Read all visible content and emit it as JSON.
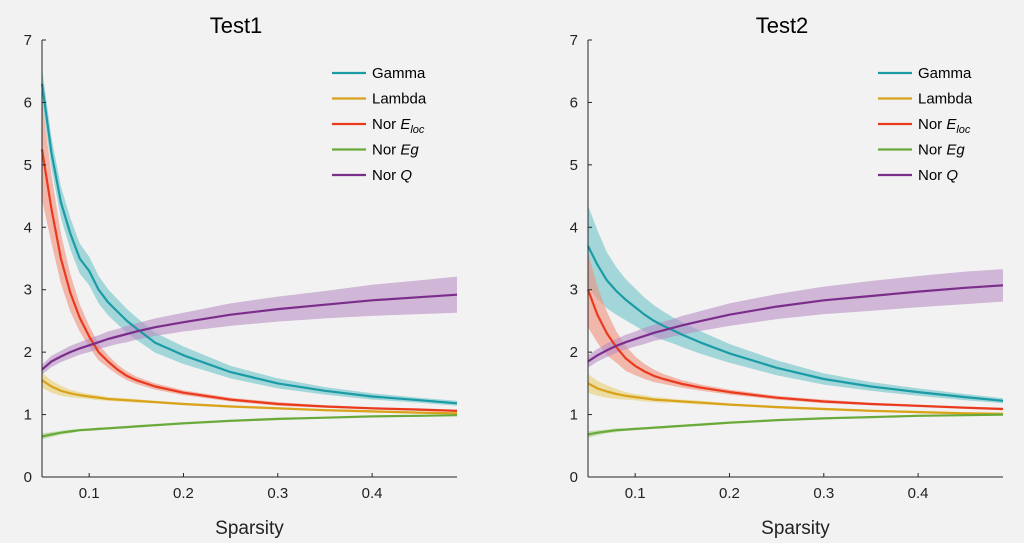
{
  "chart_data": [
    {
      "type": "line",
      "title": "Test1",
      "xlabel": "Sparsity",
      "ylabel": "",
      "xlim": [
        0.05,
        0.49
      ],
      "ylim": [
        0,
        7
      ],
      "xticks": [
        "0.1",
        "0.2",
        "0.3",
        "0.4"
      ],
      "xtick_values": [
        0.1,
        0.2,
        0.3,
        0.4
      ],
      "yticks": [
        "0",
        "1",
        "2",
        "3",
        "4",
        "5",
        "6",
        "7"
      ],
      "ytick_values": [
        0,
        1,
        2,
        3,
        4,
        5,
        6,
        7
      ],
      "grid": false,
      "legend_position": "top-right",
      "x": [
        0.05,
        0.06,
        0.07,
        0.08,
        0.09,
        0.1,
        0.11,
        0.12,
        0.13,
        0.14,
        0.15,
        0.17,
        0.2,
        0.25,
        0.3,
        0.35,
        0.4,
        0.45,
        0.49
      ],
      "series": [
        {
          "name": "Gamma",
          "color": "#1a9ba6",
          "band_color": "#6cc3c8",
          "values": [
            6.3,
            5.2,
            4.4,
            3.9,
            3.5,
            3.3,
            3.0,
            2.8,
            2.65,
            2.5,
            2.38,
            2.15,
            1.95,
            1.68,
            1.5,
            1.38,
            1.29,
            1.23,
            1.18
          ],
          "band": [
            0.25,
            0.25,
            0.25,
            0.25,
            0.24,
            0.23,
            0.22,
            0.21,
            0.2,
            0.19,
            0.18,
            0.16,
            0.14,
            0.1,
            0.08,
            0.06,
            0.05,
            0.04,
            0.04
          ]
        },
        {
          "name": "Lambda",
          "color": "#d9a21b",
          "band_color": "#e8cf72",
          "values": [
            1.55,
            1.45,
            1.38,
            1.34,
            1.31,
            1.29,
            1.27,
            1.25,
            1.24,
            1.23,
            1.22,
            1.2,
            1.17,
            1.13,
            1.1,
            1.07,
            1.05,
            1.03,
            1.02
          ],
          "band": [
            0.12,
            0.1,
            0.08,
            0.06,
            0.05,
            0.04,
            0.04,
            0.03,
            0.03,
            0.03,
            0.03,
            0.02,
            0.02,
            0.02,
            0.02,
            0.02,
            0.02,
            0.02,
            0.02
          ]
        },
        {
          "name": "Nor E_loc",
          "label_main": "Nor E",
          "label_sub": "loc",
          "color": "#ea3a1e",
          "band_color": "#f0907b",
          "values": [
            5.25,
            4.3,
            3.5,
            2.95,
            2.55,
            2.25,
            2.0,
            1.85,
            1.72,
            1.62,
            1.55,
            1.45,
            1.35,
            1.24,
            1.17,
            1.13,
            1.1,
            1.08,
            1.06
          ],
          "band": [
            0.8,
            0.55,
            0.4,
            0.3,
            0.22,
            0.17,
            0.13,
            0.1,
            0.08,
            0.07,
            0.06,
            0.05,
            0.04,
            0.03,
            0.03,
            0.02,
            0.02,
            0.02,
            0.02
          ]
        },
        {
          "name": "Nor Eg",
          "label_main": "Nor Eg",
          "color": "#6aaa3a",
          "band_color": "#a9d08a",
          "values": [
            0.65,
            0.68,
            0.71,
            0.73,
            0.75,
            0.76,
            0.77,
            0.78,
            0.79,
            0.8,
            0.81,
            0.83,
            0.86,
            0.9,
            0.93,
            0.95,
            0.97,
            0.98,
            0.99
          ],
          "band": [
            0.05,
            0.04,
            0.03,
            0.03,
            0.02,
            0.02,
            0.02,
            0.02,
            0.02,
            0.02,
            0.02,
            0.02,
            0.02,
            0.02,
            0.02,
            0.01,
            0.01,
            0.01,
            0.01
          ]
        },
        {
          "name": "Nor Q",
          "label_main": "Nor Q",
          "color": "#7b2d8b",
          "band_color": "#b98ec4",
          "values": [
            1.72,
            1.85,
            1.93,
            2.0,
            2.06,
            2.11,
            2.16,
            2.21,
            2.25,
            2.29,
            2.33,
            2.4,
            2.48,
            2.6,
            2.69,
            2.76,
            2.83,
            2.88,
            2.92
          ],
          "band": [
            0.08,
            0.09,
            0.09,
            0.1,
            0.1,
            0.11,
            0.11,
            0.12,
            0.12,
            0.13,
            0.13,
            0.14,
            0.15,
            0.18,
            0.2,
            0.22,
            0.25,
            0.27,
            0.29
          ]
        }
      ]
    },
    {
      "type": "line",
      "title": "Test2",
      "xlabel": "Sparsity",
      "ylabel": "",
      "xlim": [
        0.05,
        0.49
      ],
      "ylim": [
        0,
        7
      ],
      "xticks": [
        "0.1",
        "0.2",
        "0.3",
        "0.4"
      ],
      "xtick_values": [
        0.1,
        0.2,
        0.3,
        0.4
      ],
      "yticks": [
        "0",
        "1",
        "2",
        "3",
        "4",
        "5",
        "6",
        "7"
      ],
      "ytick_values": [
        0,
        1,
        2,
        3,
        4,
        5,
        6,
        7
      ],
      "grid": false,
      "legend_position": "top-right",
      "x": [
        0.05,
        0.06,
        0.07,
        0.08,
        0.09,
        0.1,
        0.11,
        0.12,
        0.13,
        0.14,
        0.15,
        0.17,
        0.2,
        0.25,
        0.3,
        0.35,
        0.4,
        0.45,
        0.49
      ],
      "series": [
        {
          "name": "Gamma",
          "color": "#1a9ba6",
          "band_color": "#6cc3c8",
          "values": [
            3.7,
            3.4,
            3.15,
            2.98,
            2.84,
            2.72,
            2.6,
            2.5,
            2.42,
            2.35,
            2.28,
            2.15,
            1.98,
            1.75,
            1.57,
            1.45,
            1.36,
            1.28,
            1.22
          ],
          "band": [
            0.65,
            0.55,
            0.45,
            0.38,
            0.33,
            0.3,
            0.27,
            0.25,
            0.23,
            0.21,
            0.2,
            0.18,
            0.15,
            0.12,
            0.09,
            0.07,
            0.06,
            0.05,
            0.04
          ]
        },
        {
          "name": "Lambda",
          "color": "#d9a21b",
          "band_color": "#e8cf72",
          "values": [
            1.5,
            1.42,
            1.37,
            1.33,
            1.3,
            1.28,
            1.26,
            1.24,
            1.23,
            1.22,
            1.21,
            1.19,
            1.16,
            1.12,
            1.09,
            1.06,
            1.04,
            1.02,
            1.01
          ],
          "band": [
            0.15,
            0.12,
            0.1,
            0.08,
            0.06,
            0.05,
            0.05,
            0.04,
            0.04,
            0.03,
            0.03,
            0.03,
            0.02,
            0.02,
            0.02,
            0.02,
            0.02,
            0.02,
            0.02
          ]
        },
        {
          "name": "Nor E_loc",
          "label_main": "Nor E",
          "label_sub": "loc",
          "color": "#ea3a1e",
          "band_color": "#f0907b",
          "values": [
            3.0,
            2.6,
            2.3,
            2.08,
            1.9,
            1.78,
            1.69,
            1.62,
            1.57,
            1.53,
            1.49,
            1.43,
            1.36,
            1.27,
            1.21,
            1.17,
            1.14,
            1.11,
            1.09
          ],
          "band": [
            0.6,
            0.45,
            0.35,
            0.25,
            0.2,
            0.15,
            0.12,
            0.1,
            0.08,
            0.07,
            0.06,
            0.05,
            0.04,
            0.03,
            0.03,
            0.02,
            0.02,
            0.02,
            0.02
          ]
        },
        {
          "name": "Nor Eg",
          "label_main": "Nor Eg",
          "color": "#6aaa3a",
          "band_color": "#a9d08a",
          "values": [
            0.68,
            0.71,
            0.73,
            0.75,
            0.76,
            0.77,
            0.78,
            0.79,
            0.8,
            0.81,
            0.82,
            0.84,
            0.87,
            0.91,
            0.94,
            0.96,
            0.98,
            0.99,
            1.0
          ],
          "band": [
            0.05,
            0.04,
            0.03,
            0.03,
            0.02,
            0.02,
            0.02,
            0.02,
            0.02,
            0.02,
            0.02,
            0.02,
            0.02,
            0.02,
            0.02,
            0.01,
            0.01,
            0.01,
            0.01
          ]
        },
        {
          "name": "Nor Q",
          "label_main": "Nor Q",
          "color": "#7b2d8b",
          "band_color": "#b98ec4",
          "values": [
            1.85,
            1.95,
            2.03,
            2.1,
            2.16,
            2.21,
            2.26,
            2.31,
            2.35,
            2.39,
            2.43,
            2.5,
            2.6,
            2.73,
            2.83,
            2.9,
            2.97,
            3.03,
            3.07
          ],
          "band": [
            0.1,
            0.1,
            0.11,
            0.11,
            0.12,
            0.12,
            0.13,
            0.13,
            0.14,
            0.14,
            0.15,
            0.16,
            0.18,
            0.2,
            0.22,
            0.24,
            0.25,
            0.26,
            0.26
          ]
        }
      ]
    }
  ]
}
